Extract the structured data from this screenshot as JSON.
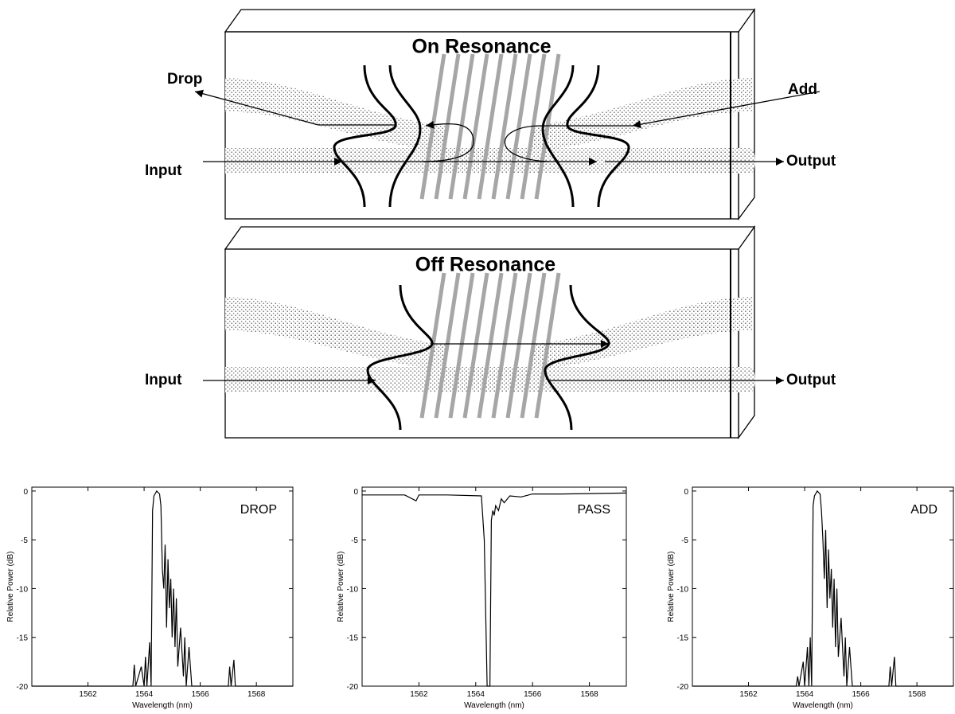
{
  "diagram": {
    "on_resonance": {
      "title": "On Resonance",
      "labels": [
        "Drop",
        "Add",
        "Input",
        "Output"
      ]
    },
    "off_resonance": {
      "title": "Off Resonance",
      "labels": [
        "Input",
        "Output"
      ]
    }
  },
  "chart_data": [
    {
      "type": "line",
      "title": "DROP",
      "xlabel": "Wavelength (nm)",
      "ylabel": "Relative Power (dB)",
      "color": "#000000",
      "x": [
        1560,
        1563.6,
        1563.65,
        1563.7,
        1563.9,
        1564.0,
        1564.05,
        1564.1,
        1564.2,
        1564.25,
        1564.3,
        1564.35,
        1564.45,
        1564.55,
        1564.6,
        1564.65,
        1564.7,
        1564.75,
        1564.8,
        1564.85,
        1564.9,
        1564.95,
        1565.0,
        1565.05,
        1565.1,
        1565.15,
        1565.2,
        1565.3,
        1565.4,
        1565.45,
        1565.5,
        1565.6,
        1565.7,
        1567.0,
        1567.05,
        1567.1,
        1567.2,
        1567.25,
        1569.3
      ],
      "values": [
        -20,
        -20,
        -17.8,
        -20,
        -18,
        -20,
        -17,
        -20,
        -15.5,
        -20,
        -2,
        -0.5,
        0,
        -0.3,
        -1.5,
        -8,
        -10,
        -5.5,
        -14,
        -7,
        -12,
        -9,
        -15,
        -10,
        -16,
        -11,
        -18,
        -14,
        -19,
        -15,
        -20,
        -16,
        -20,
        -20,
        -18,
        -20,
        -17.3,
        -20,
        -20
      ],
      "xlim": [
        1560,
        1569.3
      ],
      "ylim": [
        -20,
        0.4
      ],
      "xticks": [
        1562,
        1564,
        1566,
        1568
      ],
      "yticks": [
        0,
        -5,
        -10,
        -15,
        -20
      ]
    },
    {
      "type": "line",
      "title": "PASS",
      "xlabel": "Wavelength (nm)",
      "ylabel": "Relative Power (dB)",
      "color": "#000000",
      "x": [
        1560,
        1561.5,
        1561.9,
        1562.0,
        1563.0,
        1564.2,
        1564.3,
        1564.4,
        1564.5,
        1564.55,
        1564.6,
        1564.65,
        1564.7,
        1564.8,
        1564.9,
        1565.0,
        1565.2,
        1565.6,
        1566,
        1567,
        1569.3
      ],
      "values": [
        -0.4,
        -0.4,
        -1,
        -0.4,
        -0.4,
        -0.5,
        -5,
        -20,
        -20,
        -3,
        -2,
        -2.5,
        -1.5,
        -2,
        -0.8,
        -1.2,
        -0.5,
        -0.6,
        -0.3,
        -0.3,
        -0.2
      ],
      "xlim": [
        1560,
        1569.3
      ],
      "ylim": [
        -20,
        0.4
      ],
      "xticks": [
        1562,
        1564,
        1566,
        1568
      ],
      "yticks": [
        0,
        -5,
        -10,
        -15,
        -20
      ]
    },
    {
      "type": "line",
      "title": "ADD",
      "xlabel": "Wavelength (nm)",
      "ylabel": "Relative Power (dB)",
      "color": "#000000",
      "x": [
        1560,
        1563.7,
        1563.75,
        1563.8,
        1563.95,
        1564.0,
        1564.1,
        1564.15,
        1564.2,
        1564.25,
        1564.3,
        1564.35,
        1564.45,
        1564.55,
        1564.6,
        1564.65,
        1564.7,
        1564.75,
        1564.8,
        1564.85,
        1564.9,
        1564.95,
        1565.0,
        1565.05,
        1565.1,
        1565.15,
        1565.2,
        1565.3,
        1565.4,
        1565.45,
        1565.5,
        1565.6,
        1565.7,
        1567.0,
        1567.05,
        1567.1,
        1567.2,
        1567.25,
        1569.3
      ],
      "values": [
        -20,
        -20,
        -19,
        -20,
        -17.5,
        -20,
        -16,
        -20,
        -15,
        -20,
        -1.5,
        -0.5,
        0,
        -0.3,
        -2,
        -5,
        -9,
        -4,
        -12,
        -6,
        -11,
        -8,
        -14,
        -9,
        -16,
        -10,
        -17,
        -13,
        -19,
        -15,
        -20,
        -16,
        -20,
        -20,
        -18,
        -20,
        -17,
        -20,
        -20
      ],
      "xlim": [
        1560,
        1569.3
      ],
      "ylim": [
        -20,
        0.4
      ],
      "xticks": [
        1562,
        1564,
        1566,
        1568
      ],
      "yticks": [
        0,
        -5,
        -10,
        -15,
        -20
      ]
    }
  ]
}
